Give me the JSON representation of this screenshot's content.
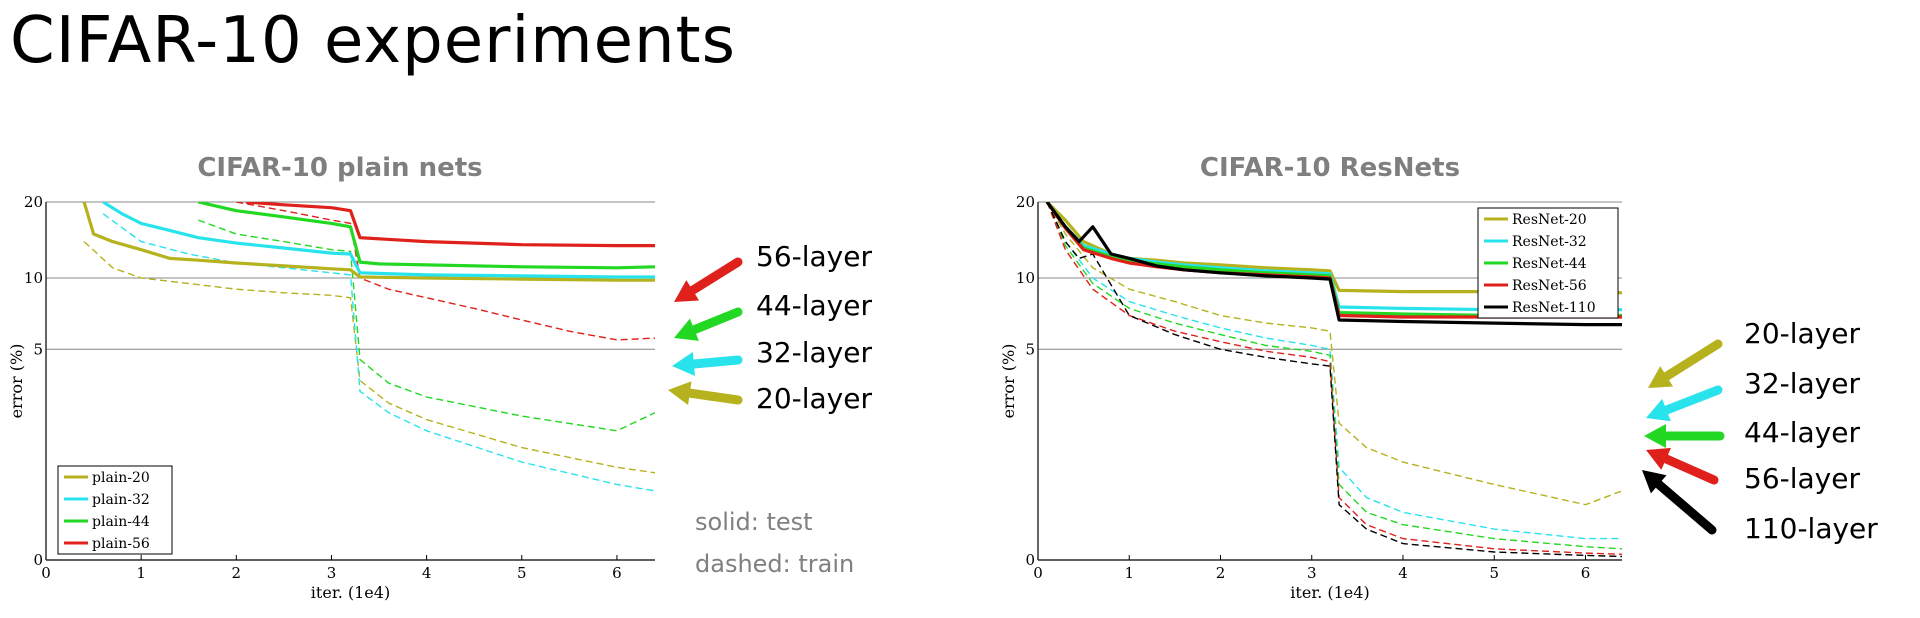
{
  "slide": {
    "title": "CIFAR-10 experiments"
  },
  "chart_data": [
    {
      "type": "line",
      "title": "CIFAR-10 plain nets",
      "xlabel": "iter. (1e4)",
      "ylabel": "error (%)",
      "xlim": [
        0,
        6.4
      ],
      "ylim": [
        0,
        20
      ],
      "y_scale": "log(1+y)",
      "xticks": [
        "0",
        "1",
        "2",
        "3",
        "4",
        "5",
        "6"
      ],
      "yticks": [
        "0",
        "5",
        "10",
        "20"
      ],
      "grid": "horizontal at 5, 10, 20",
      "legend_position": "bottom-left",
      "solid_is": "test",
      "dashed_is": "train",
      "series": [
        {
          "name": "plain-20",
          "color": "#b5b21e",
          "test": {
            "x": [
              0.4,
              0.5,
              0.7,
              1.0,
              1.3,
              1.6,
              2.0,
              2.5,
              3.0,
              3.2,
              3.3,
              4.0,
              5.0,
              6.0,
              6.4
            ],
            "y": [
              20,
              15,
              14,
              13,
              12,
              11.8,
              11.5,
              11.2,
              10.9,
              10.8,
              10.1,
              10.0,
              9.9,
              9.8,
              9.8
            ]
          },
          "train": {
            "x": [
              0.4,
              0.7,
              1.0,
              1.5,
              2.0,
              2.5,
              3.0,
              3.2,
              3.3,
              3.6,
              4.0,
              5.0,
              6.0,
              6.4
            ],
            "y": [
              14,
              11,
              10,
              9.5,
              9,
              8.7,
              8.5,
              8.3,
              3.6,
              2.8,
              2.3,
              1.6,
              1.2,
              1.1
            ]
          }
        },
        {
          "name": "plain-32",
          "color": "#29e3ec",
          "test": {
            "x": [
              0.6,
              0.8,
              1.0,
              1.3,
              1.6,
              2.0,
              2.5,
              3.0,
              3.2,
              3.3,
              4.0,
              5.0,
              6.0,
              6.4
            ],
            "y": [
              20,
              18,
              16.5,
              15.5,
              14.5,
              13.8,
              13.2,
              12.6,
              12.5,
              10.5,
              10.3,
              10.2,
              10.1,
              10.1
            ]
          },
          "train": {
            "x": [
              0.6,
              1.0,
              1.5,
              2.0,
              2.5,
              3.0,
              3.2,
              3.3,
              3.6,
              4.0,
              5.0,
              6.0,
              6.4
            ],
            "y": [
              18,
              14,
              12.5,
              11.5,
              11,
              10.5,
              10.3,
              3.2,
              2.5,
              2.0,
              1.3,
              0.9,
              0.8
            ]
          }
        },
        {
          "name": "plain-44",
          "color": "#22d822",
          "test": {
            "x": [
              1.6,
              2.0,
              2.5,
              3.0,
              3.2,
              3.3,
              3.5,
              4.0,
              5.0,
              6.0,
              6.4
            ],
            "y": [
              20,
              18.5,
              17.5,
              16.5,
              16,
              11.6,
              11.4,
              11.3,
              11.1,
              11.0,
              11.1
            ]
          },
          "train": {
            "x": [
              1.6,
              2.0,
              2.5,
              3.0,
              3.2,
              3.3,
              3.6,
              4.0,
              5.0,
              6.0,
              6.4
            ],
            "y": [
              17,
              15,
              14,
              13,
              12.8,
              4.5,
              3.5,
              3.0,
              2.4,
              2.0,
              2.5
            ]
          }
        },
        {
          "name": "plain-56",
          "color": "#e0201b",
          "test": {
            "x": [
              2.1,
              2.5,
              3.0,
              3.2,
              3.3,
              4.0,
              5.0,
              6.0,
              6.4
            ],
            "y": [
              20,
              19.5,
              19,
              18.5,
              14.5,
              14,
              13.6,
              13.5,
              13.5
            ]
          },
          "train": {
            "x": [
              2.0,
              2.5,
              3.0,
              3.2,
              3.3,
              3.6,
              4.0,
              4.5,
              5.0,
              5.5,
              6.0,
              6.4
            ],
            "y": [
              20,
              18.5,
              17,
              16.5,
              10,
              9,
              8.3,
              7.5,
              6.7,
              6.0,
              5.5,
              5.6
            ]
          }
        }
      ],
      "annotations": [
        "56-layer",
        "44-layer",
        "32-layer",
        "20-layer"
      ],
      "notes": [
        "solid: test",
        "dashed: train"
      ]
    },
    {
      "type": "line",
      "title": "CIFAR-10 ResNets",
      "xlabel": "iter. (1e4)",
      "ylabel": "error (%)",
      "xlim": [
        0,
        6.4
      ],
      "ylim": [
        0,
        20
      ],
      "y_scale": "log(1+y)",
      "xticks": [
        "0",
        "1",
        "2",
        "3",
        "4",
        "5",
        "6"
      ],
      "yticks": [
        "0",
        "5",
        "10",
        "20"
      ],
      "grid": "horizontal at 5, 10, 20",
      "legend_position": "top-right",
      "series": [
        {
          "name": "ResNet-20",
          "color": "#b5b21e",
          "test": {
            "x": [
              0.1,
              0.3,
              0.5,
              0.8,
              1.0,
              1.3,
              1.6,
              2.0,
              2.5,
              3.0,
              3.2,
              3.3,
              4.0,
              5.0,
              6.0,
              6.4
            ],
            "y": [
              20,
              17,
              14,
              12.5,
              12,
              11.8,
              11.5,
              11.3,
              11.0,
              10.8,
              10.7,
              8.9,
              8.8,
              8.8,
              8.8,
              8.7
            ]
          },
          "train": {
            "x": [
              0.1,
              0.3,
              0.6,
              1.0,
              1.5,
              2.0,
              2.5,
              3.0,
              3.2,
              3.3,
              3.6,
              4.0,
              5.0,
              6.0,
              6.4
            ],
            "y": [
              20,
              15,
              11,
              9,
              8,
              7,
              6.5,
              6.2,
              6.0,
              2.2,
              1.6,
              1.3,
              0.9,
              0.6,
              0.8
            ]
          }
        },
        {
          "name": "ResNet-32",
          "color": "#29e3ec",
          "test": {
            "x": [
              0.1,
              0.3,
              0.5,
              0.8,
              1.0,
              1.3,
              1.6,
              2.0,
              2.5,
              3.0,
              3.2,
              3.3,
              4.0,
              5.0,
              6.0,
              6.4
            ],
            "y": [
              20,
              16,
              13.5,
              12.5,
              12,
              11.6,
              11.3,
              11.0,
              10.7,
              10.5,
              10.4,
              7.6,
              7.5,
              7.4,
              7.4,
              7.4
            ]
          },
          "train": {
            "x": [
              0.1,
              0.3,
              0.6,
              1.0,
              1.5,
              2.0,
              2.5,
              3.0,
              3.2,
              3.3,
              3.6,
              4.0,
              5.0,
              6.0,
              6.4
            ],
            "y": [
              20,
              14,
              10,
              8,
              7,
              6.2,
              5.6,
              5.2,
              5.0,
              1.2,
              0.7,
              0.5,
              0.3,
              0.2,
              0.2
            ]
          }
        },
        {
          "name": "ResNet-44",
          "color": "#22d822",
          "test": {
            "x": [
              0.1,
              0.3,
              0.5,
              0.8,
              1.0,
              1.3,
              1.6,
              2.0,
              2.5,
              3.0,
              3.2,
              3.3,
              4.0,
              5.0,
              6.0,
              6.4
            ],
            "y": [
              20,
              16,
              13.2,
              12.2,
              11.8,
              11.4,
              11.1,
              10.8,
              10.5,
              10.3,
              10.2,
              7.2,
              7.1,
              7.0,
              7.0,
              7.0
            ]
          },
          "train": {
            "x": [
              0.1,
              0.3,
              0.6,
              1.0,
              1.5,
              2.0,
              2.5,
              3.0,
              3.2,
              3.3,
              3.6,
              4.0,
              5.0,
              6.0,
              6.4
            ],
            "y": [
              20,
              13.5,
              9.5,
              7.5,
              6.5,
              5.8,
              5.2,
              4.9,
              4.7,
              0.9,
              0.5,
              0.35,
              0.2,
              0.12,
              0.1
            ]
          }
        },
        {
          "name": "ResNet-56",
          "color": "#e0201b",
          "test": {
            "x": [
              0.1,
              0.3,
              0.5,
              0.8,
              1.0,
              1.3,
              1.6,
              2.0,
              2.5,
              3.0,
              3.2,
              3.3,
              4.0,
              5.0,
              6.0,
              6.4
            ],
            "y": [
              20,
              15.8,
              13.0,
              12.0,
              11.5,
              11.1,
              10.8,
              10.5,
              10.3,
              10.1,
              10.0,
              7.0,
              6.9,
              6.9,
              6.9,
              6.9
            ]
          },
          "train": {
            "x": [
              0.1,
              0.3,
              0.6,
              1.0,
              1.5,
              2.0,
              2.5,
              3.0,
              3.2,
              3.3,
              3.6,
              4.0,
              5.0,
              6.0,
              6.4
            ],
            "y": [
              20,
              13,
              9,
              7,
              6,
              5.4,
              4.9,
              4.6,
              4.4,
              0.7,
              0.35,
              0.2,
              0.1,
              0.06,
              0.05
            ]
          }
        },
        {
          "name": "ResNet-110",
          "color": "#000000",
          "test": {
            "x": [
              0.1,
              0.3,
              0.45,
              0.6,
              0.8,
              1.0,
              1.3,
              1.6,
              2.0,
              2.5,
              3.0,
              3.2,
              3.3,
              4.0,
              5.0,
              6.0,
              6.4
            ],
            "y": [
              20,
              16,
              14,
              16,
              12.5,
              12,
              11.2,
              10.8,
              10.5,
              10.2,
              10.0,
              9.9,
              6.7,
              6.6,
              6.5,
              6.4,
              6.4
            ]
          },
          "train": {
            "x": [
              0.1,
              0.3,
              0.45,
              0.6,
              1.0,
              1.5,
              2.0,
              2.5,
              3.0,
              3.2,
              3.3,
              3.6,
              4.0,
              5.0,
              6.0,
              6.4
            ],
            "y": [
              20,
              14,
              12,
              12.5,
              7,
              5.8,
              5.0,
              4.6,
              4.3,
              4.2,
              0.6,
              0.3,
              0.15,
              0.07,
              0.04,
              0.03
            ]
          }
        }
      ],
      "annotations": [
        "20-layer",
        "32-layer",
        "44-layer",
        "56-layer",
        "110-layer"
      ]
    }
  ]
}
